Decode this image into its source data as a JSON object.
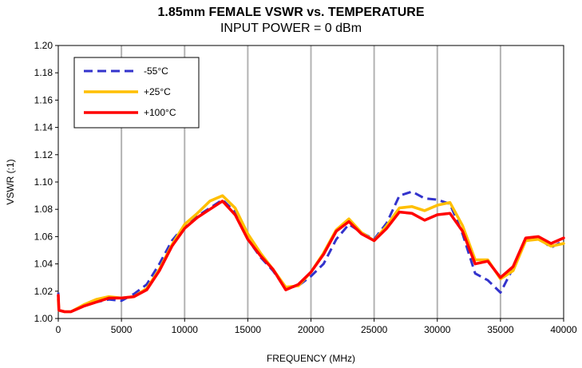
{
  "chart_data": {
    "type": "line",
    "title": "1.85mm FEMALE VSWR vs. TEMPERATURE",
    "subtitle": "INPUT POWER = 0 dBm",
    "xlabel": "FREQUENCY  (MHz)",
    "ylabel": "VSWR (:1)",
    "xlim": [
      0,
      40000
    ],
    "ylim": [
      1.0,
      1.2
    ],
    "x_ticks": [
      0,
      5000,
      10000,
      15000,
      20000,
      25000,
      30000,
      35000,
      40000
    ],
    "x_tick_labels": [
      "0",
      "5000",
      "10000",
      "15000",
      "20000",
      "25000",
      "30000",
      "35000",
      "40000"
    ],
    "y_ticks": [
      1.0,
      1.02,
      1.04,
      1.06,
      1.08,
      1.1,
      1.12,
      1.14,
      1.16,
      1.18,
      1.2
    ],
    "y_tick_labels": [
      "1.00",
      "1.02",
      "1.04",
      "1.06",
      "1.08",
      "1.10",
      "1.12",
      "1.14",
      "1.16",
      "1.18",
      "1.20"
    ],
    "grid": "vertical",
    "legend_position": "top-left",
    "series": [
      {
        "name": "-55°C",
        "color": "#3333cc",
        "style": "dashed",
        "points": [
          [
            0,
            1.019
          ],
          [
            50,
            1.006
          ],
          [
            500,
            1.005
          ],
          [
            1000,
            1.005
          ],
          [
            2000,
            1.009
          ],
          [
            3000,
            1.012
          ],
          [
            4000,
            1.014
          ],
          [
            5000,
            1.013
          ],
          [
            6000,
            1.018
          ],
          [
            7000,
            1.025
          ],
          [
            8000,
            1.04
          ],
          [
            9000,
            1.057
          ],
          [
            10000,
            1.068
          ],
          [
            11000,
            1.075
          ],
          [
            12000,
            1.081
          ],
          [
            13000,
            1.087
          ],
          [
            14000,
            1.078
          ],
          [
            15000,
            1.058
          ],
          [
            16000,
            1.045
          ],
          [
            17000,
            1.035
          ],
          [
            18000,
            1.022
          ],
          [
            19000,
            1.024
          ],
          [
            20000,
            1.031
          ],
          [
            21000,
            1.04
          ],
          [
            22000,
            1.058
          ],
          [
            23000,
            1.069
          ],
          [
            24000,
            1.063
          ],
          [
            25000,
            1.058
          ],
          [
            26000,
            1.07
          ],
          [
            27000,
            1.09
          ],
          [
            28000,
            1.093
          ],
          [
            29000,
            1.088
          ],
          [
            30000,
            1.087
          ],
          [
            31000,
            1.084
          ],
          [
            32000,
            1.062
          ],
          [
            33000,
            1.033
          ],
          [
            34000,
            1.028
          ],
          [
            35000,
            1.019
          ],
          [
            36000,
            1.037
          ],
          [
            37000,
            1.057
          ],
          [
            38000,
            1.059
          ],
          [
            39000,
            1.052
          ],
          [
            40000,
            1.057
          ]
        ]
      },
      {
        "name": "+25°C",
        "color": "#ffbf00",
        "style": "solid",
        "points": [
          [
            0,
            1.014
          ],
          [
            50,
            1.006
          ],
          [
            500,
            1.005
          ],
          [
            1000,
            1.005
          ],
          [
            2000,
            1.01
          ],
          [
            3000,
            1.014
          ],
          [
            4000,
            1.016
          ],
          [
            5000,
            1.015
          ],
          [
            6000,
            1.016
          ],
          [
            7000,
            1.022
          ],
          [
            8000,
            1.036
          ],
          [
            9000,
            1.054
          ],
          [
            10000,
            1.069
          ],
          [
            11000,
            1.077
          ],
          [
            12000,
            1.086
          ],
          [
            13000,
            1.09
          ],
          [
            14000,
            1.081
          ],
          [
            15000,
            1.062
          ],
          [
            16000,
            1.048
          ],
          [
            17000,
            1.036
          ],
          [
            18000,
            1.023
          ],
          [
            19000,
            1.024
          ],
          [
            20000,
            1.034
          ],
          [
            21000,
            1.048
          ],
          [
            22000,
            1.065
          ],
          [
            23000,
            1.073
          ],
          [
            24000,
            1.063
          ],
          [
            25000,
            1.057
          ],
          [
            26000,
            1.068
          ],
          [
            27000,
            1.081
          ],
          [
            28000,
            1.082
          ],
          [
            29000,
            1.079
          ],
          [
            30000,
            1.083
          ],
          [
            31000,
            1.085
          ],
          [
            32000,
            1.068
          ],
          [
            33000,
            1.043
          ],
          [
            34000,
            1.043
          ],
          [
            35000,
            1.029
          ],
          [
            36000,
            1.035
          ],
          [
            37000,
            1.057
          ],
          [
            38000,
            1.058
          ],
          [
            39000,
            1.053
          ],
          [
            40000,
            1.055
          ]
        ]
      },
      {
        "name": "+100°C",
        "color": "#ff0000",
        "style": "solid",
        "points": [
          [
            0,
            1.017
          ],
          [
            50,
            1.006
          ],
          [
            500,
            1.005
          ],
          [
            1000,
            1.005
          ],
          [
            2000,
            1.009
          ],
          [
            3000,
            1.012
          ],
          [
            4000,
            1.015
          ],
          [
            5000,
            1.015
          ],
          [
            6000,
            1.016
          ],
          [
            7000,
            1.021
          ],
          [
            8000,
            1.035
          ],
          [
            9000,
            1.053
          ],
          [
            10000,
            1.066
          ],
          [
            11000,
            1.074
          ],
          [
            12000,
            1.08
          ],
          [
            13000,
            1.086
          ],
          [
            14000,
            1.076
          ],
          [
            15000,
            1.058
          ],
          [
            16000,
            1.046
          ],
          [
            17000,
            1.036
          ],
          [
            18000,
            1.021
          ],
          [
            19000,
            1.025
          ],
          [
            20000,
            1.034
          ],
          [
            21000,
            1.047
          ],
          [
            22000,
            1.064
          ],
          [
            23000,
            1.071
          ],
          [
            24000,
            1.062
          ],
          [
            25000,
            1.057
          ],
          [
            26000,
            1.066
          ],
          [
            27000,
            1.078
          ],
          [
            28000,
            1.077
          ],
          [
            29000,
            1.072
          ],
          [
            30000,
            1.076
          ],
          [
            31000,
            1.077
          ],
          [
            32000,
            1.064
          ],
          [
            33000,
            1.04
          ],
          [
            34000,
            1.042
          ],
          [
            35000,
            1.03
          ],
          [
            36000,
            1.038
          ],
          [
            37000,
            1.059
          ],
          [
            38000,
            1.06
          ],
          [
            39000,
            1.055
          ],
          [
            40000,
            1.059
          ]
        ]
      }
    ]
  }
}
